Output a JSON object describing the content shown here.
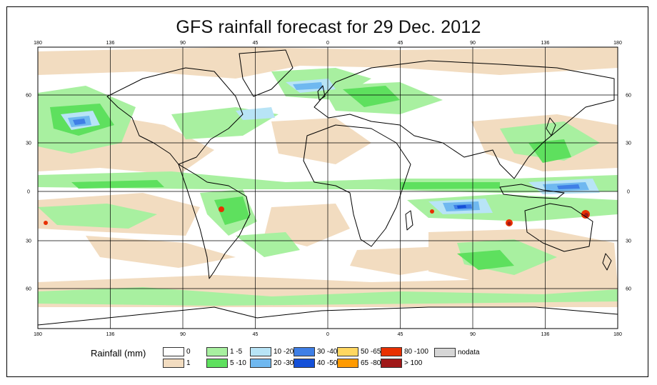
{
  "title": "GFS rainfall forecast for 29 Dec. 2012",
  "map": {
    "projection": "equirectangular",
    "lon_range": [
      -180,
      180
    ],
    "lat_range": [
      -90,
      90
    ],
    "grid": true,
    "top_lon_labels": [
      "180",
      "136",
      "90",
      "45",
      "0",
      "45",
      "90",
      "136",
      "180"
    ],
    "bottom_lon_labels": [
      "180",
      "136",
      "90",
      "45",
      "0",
      "45",
      "90",
      "136",
      "180"
    ],
    "left_lat_labels": [
      "60",
      "30",
      "0",
      "30",
      "60"
    ],
    "right_lat_labels": [
      "60",
      "30",
      "0",
      "30",
      "60"
    ],
    "ocean_color": "#ffffff",
    "coastline_color": "#000000",
    "rain_classes_drawn": [
      "1",
      "1 -5",
      "5 -10",
      "10 -20",
      "20 -30",
      "30 -40",
      "40 -50",
      "80 -100",
      "> 100"
    ]
  },
  "legend": {
    "title": "Rainfall (mm)",
    "items": [
      {
        "label": "0",
        "color": "#ffffff"
      },
      {
        "label": "1",
        "color": "#f2dcc0"
      },
      {
        "label": "1 -5",
        "color": "#a8f0a0"
      },
      {
        "label": "5 -10",
        "color": "#5ee05e"
      },
      {
        "label": "10 -20",
        "color": "#b8e4f6"
      },
      {
        "label": "20 -30",
        "color": "#6fb8f0"
      },
      {
        "label": "30 -40",
        "color": "#3f7fe6"
      },
      {
        "label": "40 -50",
        "color": "#1450d8"
      },
      {
        "label": "50 -65",
        "color": "#ffd760"
      },
      {
        "label": "65 -80",
        "color": "#ff9a00"
      },
      {
        "label": "80 -100",
        "color": "#e83000"
      },
      {
        "label": "> 100",
        "color": "#a01818"
      },
      {
        "label": "nodata",
        "color": "#d6d6d6"
      }
    ]
  }
}
